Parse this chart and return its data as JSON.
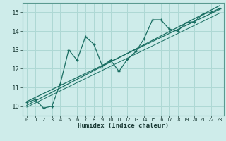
{
  "xlabel": "Humidex (Indice chaleur)",
  "bg_color": "#ceecea",
  "grid_color": "#aed8d4",
  "line_color": "#1a6e62",
  "xlim": [
    -0.5,
    23.5
  ],
  "ylim": [
    9.5,
    15.5
  ],
  "xticks": [
    0,
    1,
    2,
    3,
    4,
    5,
    6,
    7,
    8,
    9,
    10,
    11,
    12,
    13,
    14,
    15,
    16,
    17,
    18,
    19,
    20,
    21,
    22,
    23
  ],
  "yticks": [
    10,
    11,
    12,
    13,
    14,
    15
  ],
  "data_x": [
    0,
    1,
    2,
    3,
    4,
    5,
    6,
    7,
    8,
    9,
    10,
    11,
    12,
    13,
    14,
    15,
    16,
    17,
    18,
    19,
    20,
    21,
    22,
    23
  ],
  "data_y": [
    10.2,
    10.35,
    9.9,
    10.0,
    11.2,
    13.0,
    12.45,
    13.7,
    13.3,
    12.15,
    12.45,
    11.85,
    12.5,
    12.9,
    13.6,
    14.6,
    14.6,
    14.1,
    14.0,
    14.45,
    14.5,
    14.9,
    15.0,
    15.2
  ],
  "trend1_x": [
    0,
    23
  ],
  "trend1_y": [
    10.25,
    15.15
  ],
  "trend2_x": [
    0,
    23
  ],
  "trend2_y": [
    10.05,
    15.35
  ],
  "trend3_x": [
    0,
    23
  ],
  "trend3_y": [
    9.95,
    14.95
  ]
}
